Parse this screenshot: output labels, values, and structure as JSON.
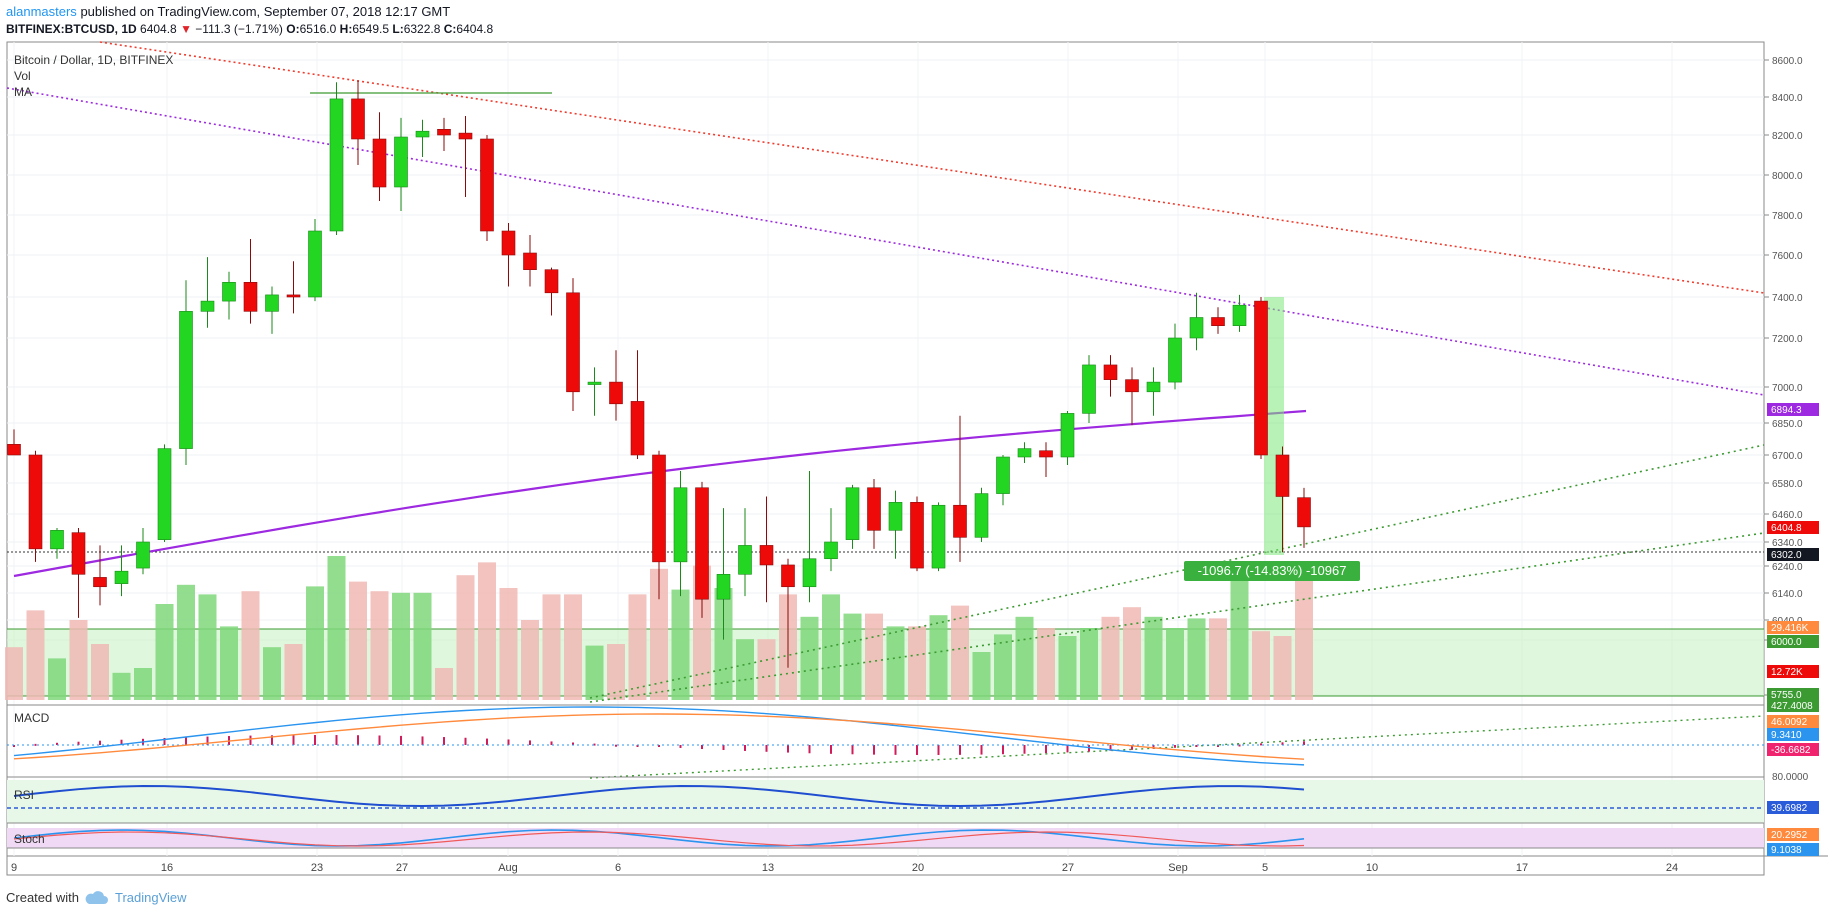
{
  "header": {
    "author": "alanmasters",
    "published": "published on TradingView.com, September 07, 2018 12:17 GMT",
    "symbol": "BITFINEX:BTCUSD, 1D",
    "last": "6404.8",
    "change": "−111.3 (−1.71%)",
    "o_label": "O:",
    "o": "6516.0",
    "h_label": "H:",
    "h": "6549.5",
    "l_label": "L:",
    "l": "6322.8",
    "c_label": "C:",
    "c": "6404.8"
  },
  "legend": {
    "title": "Bitcoin / Dollar, 1D, BITFINEX",
    "vol": "Vol",
    "ma": "MA"
  },
  "footer": {
    "created": "Created with",
    "brand": "TradingView"
  },
  "colors": {
    "up": "#22d622",
    "down": "#ef0a0a",
    "ma200": "#9d29e0",
    "macd": "#2a94ef",
    "signal": "#ff8a3d",
    "red_trend": "#f03c2e",
    "green_trend": "#3c9a32"
  },
  "chart_data": {
    "type": "candlestick",
    "title": "Bitcoin / Dollar, 1D, BITFINEX",
    "x_labels": [
      "9",
      "16",
      "23",
      "27",
      "Aug",
      "6",
      "13",
      "20",
      "27",
      "Sep",
      "5",
      "10",
      "17",
      "24"
    ],
    "y_ticks": [
      "8600.0",
      "8400.0",
      "8200.0",
      "8000.0",
      "7800.0",
      "7600.0",
      "7400.0",
      "7200.0",
      "7000.0",
      "6850.0",
      "6700.0",
      "6580.0",
      "6460.0",
      "6340.0",
      "6240.0",
      "6140.0",
      "6040.0",
      "6000.0",
      "5755.0"
    ],
    "ohlc": [
      {
        "d": "Jul 9",
        "o": 6750,
        "h": 6820,
        "l": 6700,
        "c": 6700
      },
      {
        "d": "Jul 10",
        "o": 6700,
        "h": 6720,
        "l": 6280,
        "c": 6320
      },
      {
        "d": "Jul 11",
        "o": 6320,
        "h": 6400,
        "l": 6290,
        "c": 6390
      },
      {
        "d": "Jul 12",
        "o": 6380,
        "h": 6400,
        "l": 6100,
        "c": 6240
      },
      {
        "d": "Jul 13",
        "o": 6230,
        "h": 6330,
        "l": 6140,
        "c": 6200
      },
      {
        "d": "Jul 14",
        "o": 6210,
        "h": 6330,
        "l": 6170,
        "c": 6250
      },
      {
        "d": "Jul 15",
        "o": 6260,
        "h": 6400,
        "l": 6240,
        "c": 6340
      },
      {
        "d": "Jul 16",
        "o": 6350,
        "h": 6750,
        "l": 6340,
        "c": 6730
      },
      {
        "d": "Jul 17",
        "o": 6730,
        "h": 7480,
        "l": 6650,
        "c": 7330
      },
      {
        "d": "Jul 18",
        "o": 7330,
        "h": 7590,
        "l": 7250,
        "c": 7380
      },
      {
        "d": "Jul 19",
        "o": 7380,
        "h": 7520,
        "l": 7290,
        "c": 7470
      },
      {
        "d": "Jul 20",
        "o": 7470,
        "h": 7680,
        "l": 7270,
        "c": 7330
      },
      {
        "d": "Jul 21",
        "o": 7330,
        "h": 7450,
        "l": 7220,
        "c": 7410
      },
      {
        "d": "Jul 22",
        "o": 7410,
        "h": 7570,
        "l": 7320,
        "c": 7400
      },
      {
        "d": "Jul 23",
        "o": 7400,
        "h": 7780,
        "l": 7380,
        "c": 7720
      },
      {
        "d": "Jul 24",
        "o": 7720,
        "h": 8480,
        "l": 7700,
        "c": 8390
      },
      {
        "d": "Jul 25",
        "o": 8390,
        "h": 8490,
        "l": 8050,
        "c": 8180
      },
      {
        "d": "Jul 26",
        "o": 8180,
        "h": 8320,
        "l": 7870,
        "c": 7940
      },
      {
        "d": "Jul 27",
        "o": 7940,
        "h": 8290,
        "l": 7820,
        "c": 8190
      },
      {
        "d": "Jul 28",
        "o": 8190,
        "h": 8280,
        "l": 8090,
        "c": 8220
      },
      {
        "d": "Jul 29",
        "o": 8230,
        "h": 8290,
        "l": 8120,
        "c": 8200
      },
      {
        "d": "Jul 30",
        "o": 8210,
        "h": 8300,
        "l": 7890,
        "c": 8180
      },
      {
        "d": "Jul 31",
        "o": 8180,
        "h": 8200,
        "l": 7670,
        "c": 7720
      },
      {
        "d": "Aug 1",
        "o": 7720,
        "h": 7760,
        "l": 7450,
        "c": 7600
      },
      {
        "d": "Aug 2",
        "o": 7610,
        "h": 7700,
        "l": 7450,
        "c": 7530
      },
      {
        "d": "Aug 3",
        "o": 7530,
        "h": 7540,
        "l": 7310,
        "c": 7420
      },
      {
        "d": "Aug 4",
        "o": 7420,
        "h": 7490,
        "l": 6900,
        "c": 6980
      },
      {
        "d": "Aug 5",
        "o": 7010,
        "h": 7080,
        "l": 6880,
        "c": 7020
      },
      {
        "d": "Aug 6",
        "o": 7020,
        "h": 7150,
        "l": 6860,
        "c": 6930
      },
      {
        "d": "Aug 7",
        "o": 6940,
        "h": 7150,
        "l": 6680,
        "c": 6700
      },
      {
        "d": "Aug 8",
        "o": 6700,
        "h": 6720,
        "l": 6160,
        "c": 6280
      },
      {
        "d": "Aug 9",
        "o": 6280,
        "h": 6620,
        "l": 6170,
        "c": 6550
      },
      {
        "d": "Aug 10",
        "o": 6550,
        "h": 6570,
        "l": 6100,
        "c": 6160
      },
      {
        "d": "Aug 11",
        "o": 6160,
        "h": 6480,
        "l": 6030,
        "c": 6240
      },
      {
        "d": "Aug 12",
        "o": 6240,
        "h": 6480,
        "l": 6170,
        "c": 6330
      },
      {
        "d": "Aug 13",
        "o": 6330,
        "h": 6520,
        "l": 6150,
        "c": 6270
      },
      {
        "d": "Aug 14",
        "o": 6270,
        "h": 6290,
        "l": 5900,
        "c": 6200
      },
      {
        "d": "Aug 15",
        "o": 6200,
        "h": 6620,
        "l": 6150,
        "c": 6290
      },
      {
        "d": "Aug 16",
        "o": 6290,
        "h": 6480,
        "l": 6250,
        "c": 6340
      },
      {
        "d": "Aug 17",
        "o": 6350,
        "h": 6560,
        "l": 6320,
        "c": 6550
      },
      {
        "d": "Aug 18",
        "o": 6550,
        "h": 6580,
        "l": 6320,
        "c": 6390
      },
      {
        "d": "Aug 19",
        "o": 6390,
        "h": 6540,
        "l": 6290,
        "c": 6500
      },
      {
        "d": "Aug 20",
        "o": 6500,
        "h": 6520,
        "l": 6250,
        "c": 6260
      },
      {
        "d": "Aug 21",
        "o": 6260,
        "h": 6500,
        "l": 6250,
        "c": 6490
      },
      {
        "d": "Aug 22",
        "o": 6490,
        "h": 6880,
        "l": 6280,
        "c": 6360
      },
      {
        "d": "Aug 23",
        "o": 6360,
        "h": 6550,
        "l": 6340,
        "c": 6530
      },
      {
        "d": "Aug 24",
        "o": 6530,
        "h": 6700,
        "l": 6490,
        "c": 6690
      },
      {
        "d": "Aug 25",
        "o": 6690,
        "h": 6760,
        "l": 6660,
        "c": 6730
      },
      {
        "d": "Aug 26",
        "o": 6720,
        "h": 6760,
        "l": 6590,
        "c": 6690
      },
      {
        "d": "Aug 27",
        "o": 6690,
        "h": 6900,
        "l": 6650,
        "c": 6890
      },
      {
        "d": "Aug 28",
        "o": 6890,
        "h": 7130,
        "l": 6850,
        "c": 7090
      },
      {
        "d": "Aug 29",
        "o": 7090,
        "h": 7130,
        "l": 6960,
        "c": 7030
      },
      {
        "d": "Aug 30",
        "o": 7030,
        "h": 7080,
        "l": 6840,
        "c": 6980
      },
      {
        "d": "Aug 31",
        "o": 6980,
        "h": 7080,
        "l": 6880,
        "c": 7020
      },
      {
        "d": "Sep 1",
        "o": 7020,
        "h": 7270,
        "l": 6990,
        "c": 7200
      },
      {
        "d": "Sep 2",
        "o": 7200,
        "h": 7420,
        "l": 7150,
        "c": 7300
      },
      {
        "d": "Sep 3",
        "o": 7300,
        "h": 7350,
        "l": 7220,
        "c": 7260
      },
      {
        "d": "Sep 4",
        "o": 7260,
        "h": 7410,
        "l": 7230,
        "c": 7360
      },
      {
        "d": "Sep 5",
        "o": 7380,
        "h": 7400,
        "l": 6680,
        "c": 6700
      },
      {
        "d": "Sep 6",
        "o": 6700,
        "h": 6740,
        "l": 6310,
        "c": 6520
      },
      {
        "d": "Sep 7",
        "o": 6516,
        "h": 6549.5,
        "l": 6322.8,
        "c": 6404.8
      }
    ],
    "volume_rel": [
      0.33,
      0.56,
      0.26,
      0.5,
      0.35,
      0.17,
      0.2,
      0.6,
      0.72,
      0.66,
      0.46,
      0.68,
      0.33,
      0.35,
      0.71,
      0.9,
      0.74,
      0.68,
      0.67,
      0.67,
      0.2,
      0.78,
      0.86,
      0.7,
      0.5,
      0.66,
      0.66,
      0.34,
      0.35,
      0.66,
      0.82,
      0.69,
      0.84,
      0.7,
      0.38,
      0.38,
      0.66,
      0.52,
      0.66,
      0.54,
      0.54,
      0.46,
      0.46,
      0.53,
      0.59,
      0.3,
      0.41,
      0.52,
      0.45,
      0.4,
      0.45,
      0.52,
      0.58,
      0.52,
      0.45,
      0.51,
      0.51,
      0.75,
      0.43,
      0.4,
      0.85
    ],
    "ma_line": {
      "name": "MA",
      "from": 6200,
      "to": 6870
    },
    "measure_label": "-1096.7 (-14.83%) -10967",
    "price_labels": [
      {
        "text": "6894.3",
        "bg": "#9d29e0"
      },
      {
        "text": "6404.8",
        "bg": "#ef0a0a"
      },
      {
        "text": "6302.0",
        "bg": "#131722"
      },
      {
        "text": "29.416K",
        "bg": "#ff8a3d"
      },
      {
        "text": "6000.0",
        "bg": "#3c9a32"
      },
      {
        "text": "12.72K",
        "bg": "#ef0a0a"
      },
      {
        "text": "5755.0",
        "bg": "#3c9a32"
      },
      {
        "text": "427.4008",
        "bg": "#3c9a32"
      }
    ],
    "panes": [
      {
        "name": "MACD",
        "labels": [
          {
            "text": "46.0092",
            "bg": "#ff8a3d"
          },
          {
            "text": "9.3410",
            "bg": "#2a94ef"
          },
          {
            "text": "-36.6682",
            "bg": "#f0246e"
          }
        ]
      },
      {
        "name": "RSI",
        "ticks": [
          "80.0000"
        ],
        "labels": [
          {
            "text": "39.6982",
            "bg": "#2a5bd9"
          }
        ]
      },
      {
        "name": "Stoch",
        "labels": [
          {
            "text": "20.2952",
            "bg": "#ff8a3d"
          },
          {
            "text": "9.1038",
            "bg": "#2a94ef"
          }
        ]
      }
    ]
  }
}
